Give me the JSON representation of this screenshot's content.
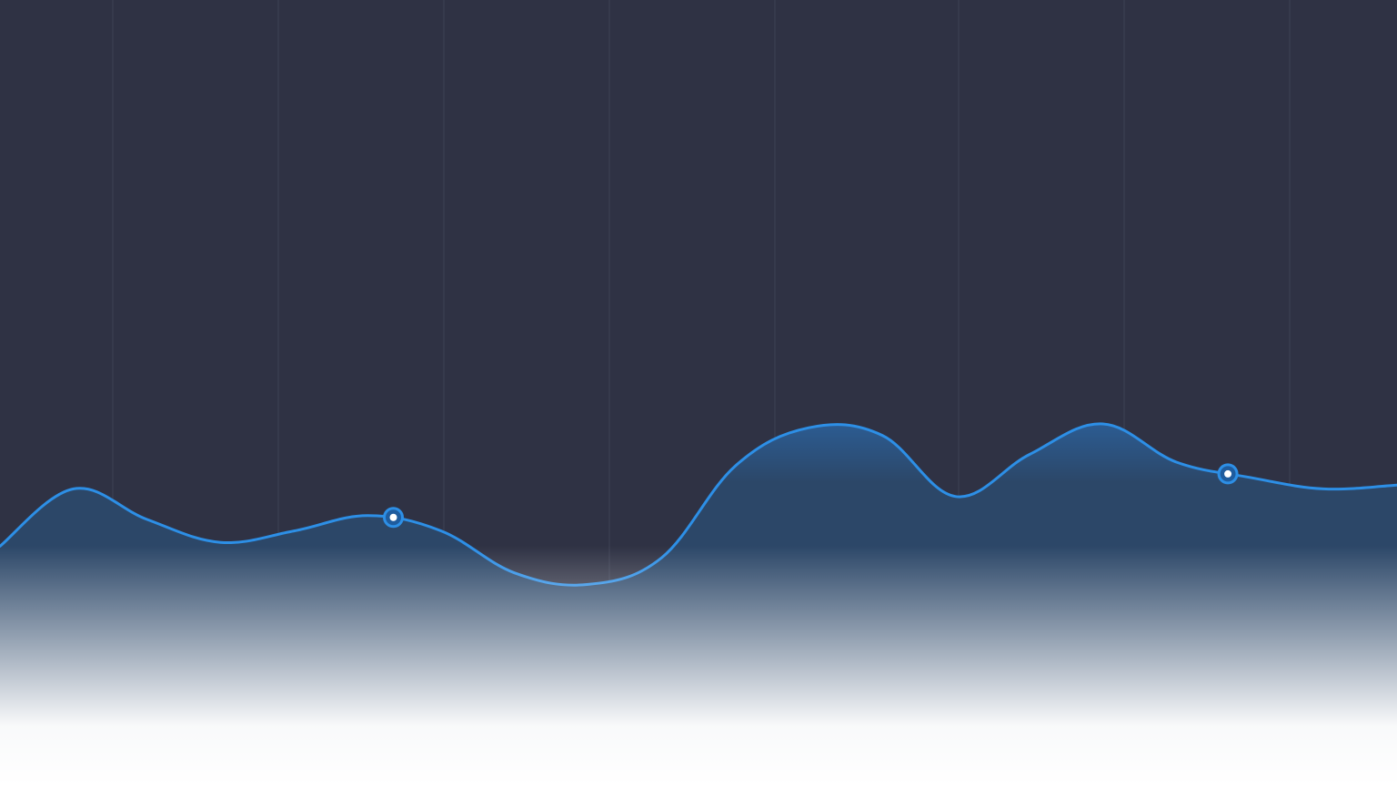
{
  "chart_data": {
    "type": "area",
    "title": "",
    "xlabel": "",
    "ylabel": "",
    "x": [
      0,
      1,
      2,
      3,
      4,
      5,
      6,
      7,
      8,
      9,
      10,
      11,
      12,
      13,
      14,
      15,
      16,
      17,
      18,
      19
    ],
    "series": [
      {
        "values": [
          38,
          53,
          45,
          39,
          42,
          46,
          42,
          31,
          28,
          35,
          59,
          69,
          67,
          51,
          62,
          70,
          60,
          56,
          53,
          54
        ],
        "highlighted_indices": []
      }
    ],
    "highlight_points": [
      {
        "x": 5.35,
        "y": 46
      },
      {
        "x": 16.7,
        "y": 58
      }
    ],
    "ylim": [
      0,
      100
    ],
    "grid": "vertical",
    "legend": "none",
    "vertical_gridline_count": 8,
    "colors": {
      "background": "#2f3244",
      "line": "#2d8fe6",
      "fill_top": "#2c6db4",
      "fill_mid": "#2c4768",
      "fade": "#ffffff",
      "gridline": "#3e4255",
      "marker_fill": "#ffffff",
      "marker_ring": "#1f5c9e"
    }
  }
}
